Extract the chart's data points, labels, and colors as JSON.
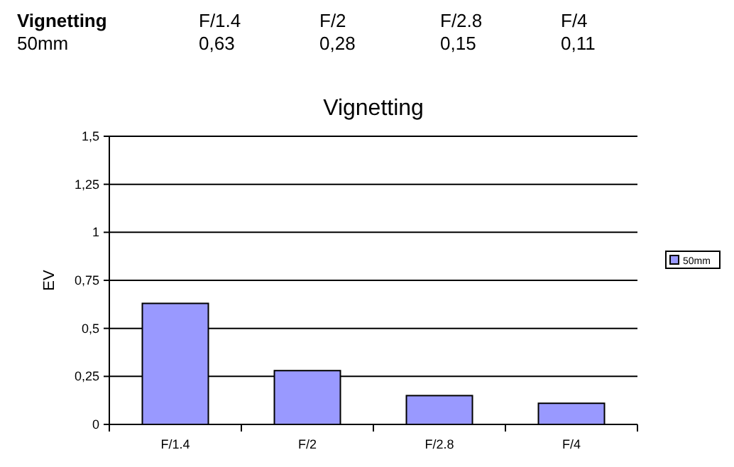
{
  "chart_data": {
    "type": "bar",
    "title": "Vignetting",
    "ylabel": "EV",
    "categories": [
      "F/1.4",
      "F/2",
      "F/2.8",
      "F/4"
    ],
    "series": [
      {
        "name": "50mm",
        "color": "#9999ff",
        "values": [
          0.63,
          0.28,
          0.15,
          0.11
        ],
        "value_labels": [
          "0,63",
          "0,28",
          "0,15",
          "0,11"
        ]
      }
    ],
    "ylim": [
      0,
      1.5
    ],
    "yticks": [
      0,
      {
        "value": 0.25,
        "label": "0,25"
      },
      {
        "value": 0.5,
        "label": "0,5"
      },
      {
        "value": 0.75,
        "label": "0,75"
      },
      1,
      {
        "value": 1.25,
        "label": "1,25"
      },
      {
        "value": 1.5,
        "label": "1,5"
      }
    ],
    "grid": "y",
    "legend": "right"
  }
}
